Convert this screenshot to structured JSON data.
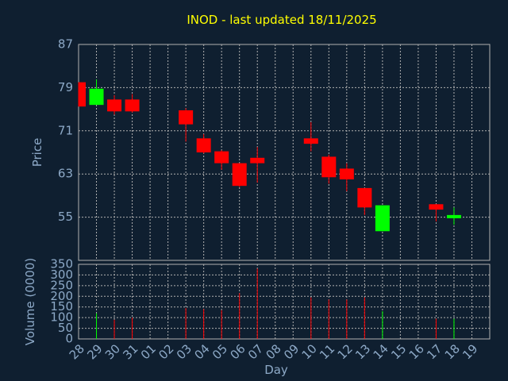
{
  "chart_data": {
    "type": "candlestick",
    "title": "INOD - last updated 18/11/2025",
    "xlabel": "Day",
    "price_axis": {
      "label": "Price",
      "ylim": [
        47,
        87
      ],
      "ticks": [
        55,
        63,
        71,
        79,
        87
      ]
    },
    "volume_axis": {
      "label": "Volume (0000)",
      "ylim": [
        0,
        350
      ],
      "ticks": [
        0,
        50,
        100,
        150,
        200,
        250,
        300,
        350
      ]
    },
    "x_ticks": [
      "28",
      "29",
      "30",
      "31",
      "01",
      "02",
      "03",
      "04",
      "05",
      "06",
      "07",
      "08",
      "09",
      "10",
      "11",
      "12",
      "13",
      "14",
      "15",
      "16",
      "17",
      "18",
      "19"
    ],
    "grid": true,
    "colors": {
      "up": "#00ff00",
      "down": "#ff0000",
      "background": "#0f1f30",
      "title": "#ffff00",
      "axis_text": "#8da9c7",
      "grid": "#b0b0b0"
    },
    "candles": [
      {
        "day": "28",
        "open": 80.0,
        "high": 80.0,
        "low": 75.5,
        "close": 75.5,
        "volume": 0
      },
      {
        "day": "29",
        "open": 75.8,
        "high": 80.5,
        "low": 75.8,
        "close": 78.8,
        "volume": 120
      },
      {
        "day": "30",
        "open": 76.8,
        "high": 77.6,
        "low": 74.0,
        "close": 74.6,
        "volume": 90
      },
      {
        "day": "31",
        "open": 76.8,
        "high": 77.8,
        "low": 74.4,
        "close": 74.6,
        "volume": 100
      },
      {
        "day": "03",
        "open": 74.8,
        "high": 75.2,
        "low": 69.0,
        "close": 72.2,
        "volume": 145
      },
      {
        "day": "04",
        "open": 69.6,
        "high": 70.4,
        "low": 66.8,
        "close": 67.0,
        "volume": 140
      },
      {
        "day": "05",
        "open": 67.2,
        "high": 67.4,
        "low": 63.8,
        "close": 65.0,
        "volume": 135
      },
      {
        "day": "06",
        "open": 65.0,
        "high": 65.0,
        "low": 60.6,
        "close": 60.8,
        "volume": 215
      },
      {
        "day": "07",
        "open": 66.0,
        "high": 68.0,
        "low": 61.4,
        "close": 65.0,
        "volume": 330
      },
      {
        "day": "10",
        "open": 69.6,
        "high": 72.6,
        "low": 67.2,
        "close": 68.6,
        "volume": 195
      },
      {
        "day": "11",
        "open": 66.2,
        "high": 66.6,
        "low": 61.2,
        "close": 62.4,
        "volume": 185
      },
      {
        "day": "12",
        "open": 64.0,
        "high": 65.0,
        "low": 59.8,
        "close": 62.0,
        "volume": 185
      },
      {
        "day": "13",
        "open": 60.4,
        "high": 60.4,
        "low": 55.4,
        "close": 56.8,
        "volume": 195
      },
      {
        "day": "14",
        "open": 52.4,
        "high": 57.2,
        "low": 52.4,
        "close": 57.2,
        "volume": 130
      },
      {
        "day": "17",
        "open": 57.4,
        "high": 57.4,
        "low": 54.2,
        "close": 56.4,
        "volume": 95
      },
      {
        "day": "18",
        "open": 54.8,
        "high": 56.8,
        "low": 53.6,
        "close": 55.4,
        "volume": 95
      }
    ]
  }
}
